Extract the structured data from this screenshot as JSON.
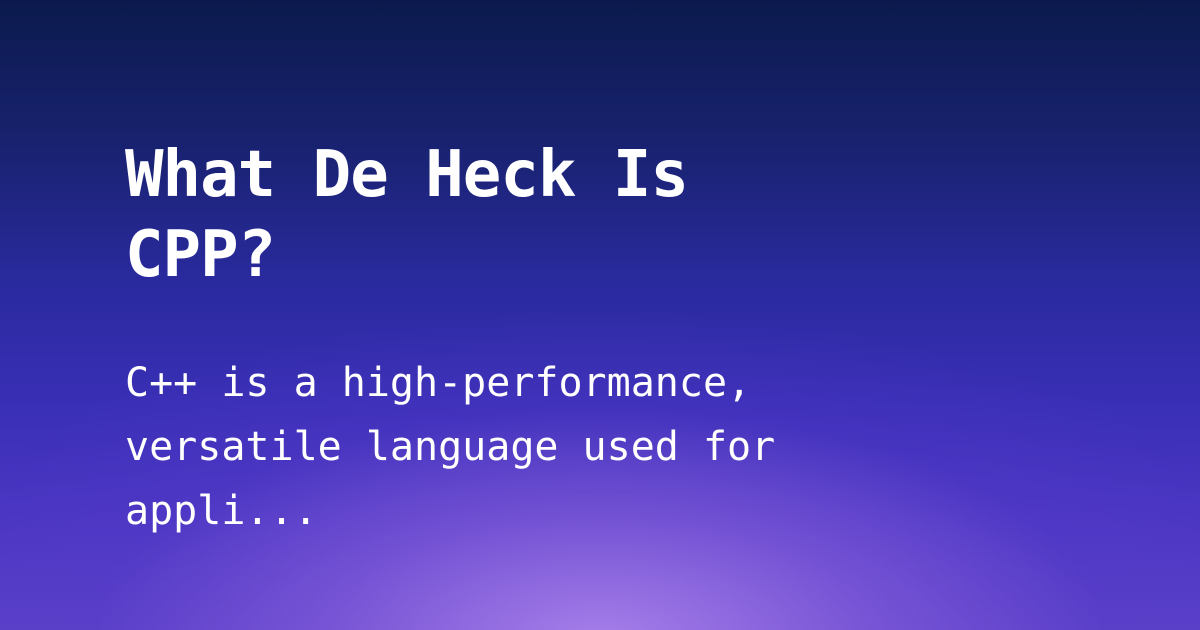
{
  "post": {
    "title": "What De Heck Is CPP?",
    "excerpt": "C++ is a high-performance, versatile language used for appli..."
  }
}
